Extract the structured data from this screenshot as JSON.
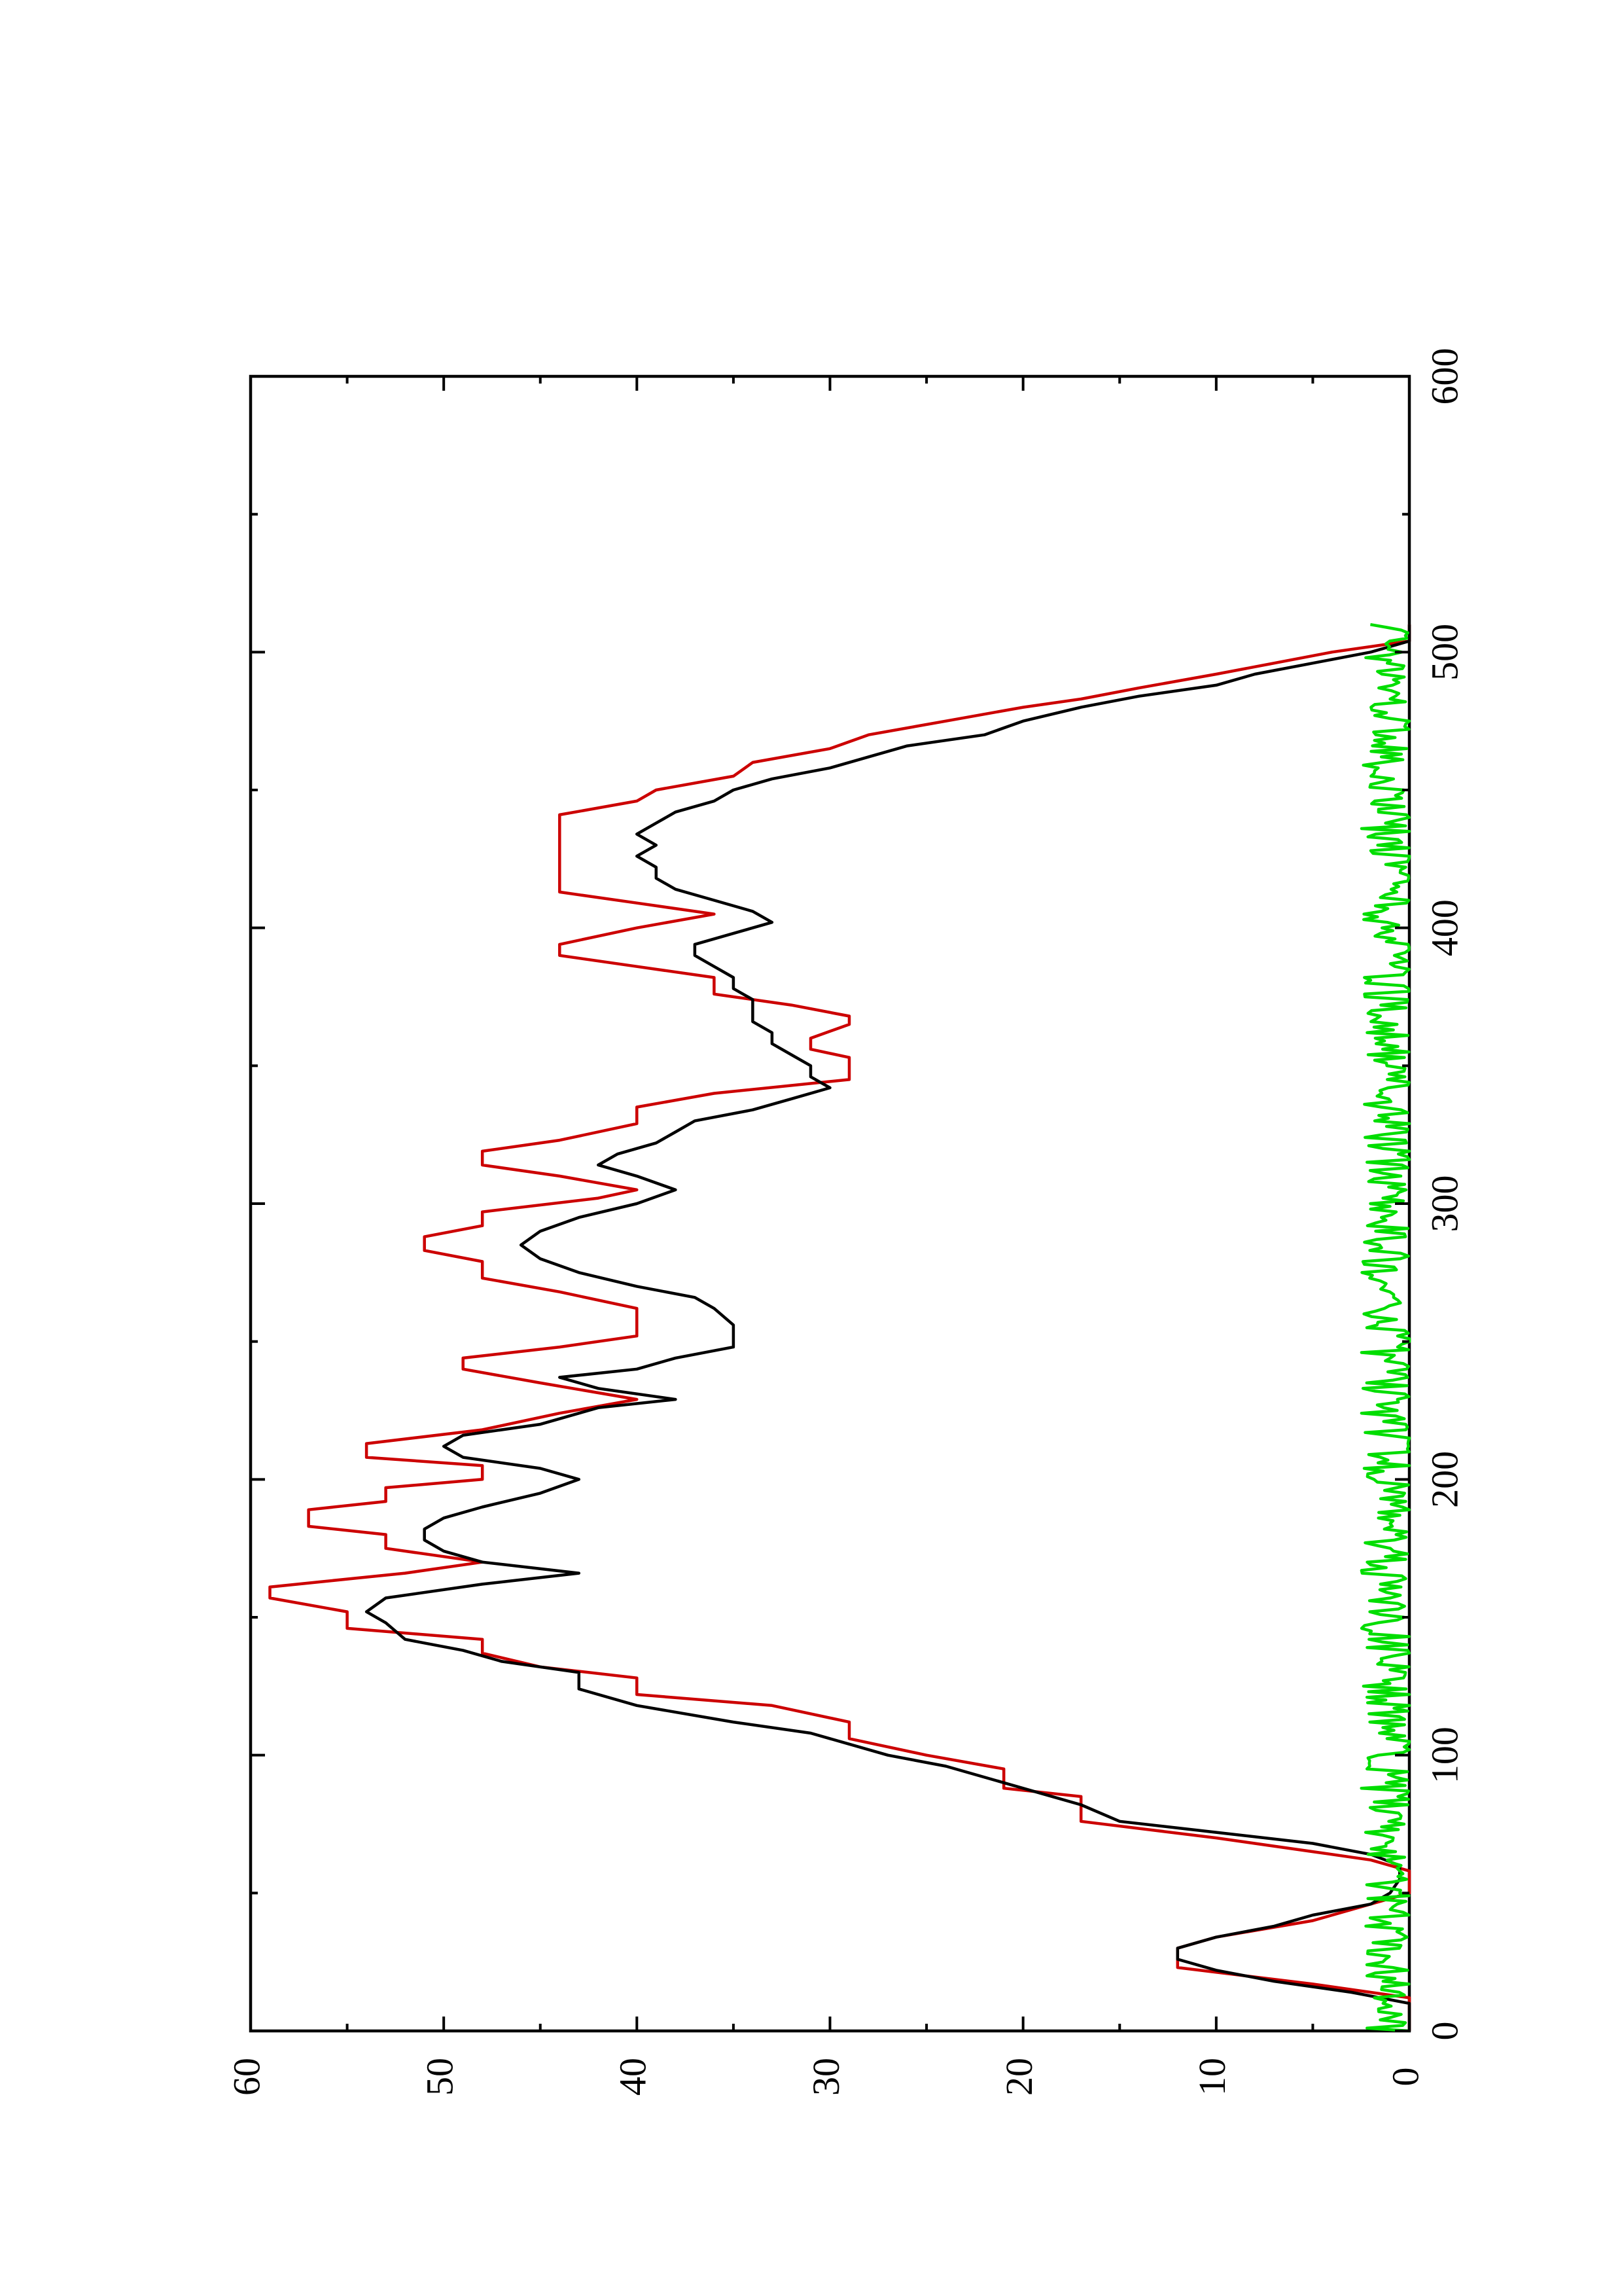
{
  "chart_data": {
    "type": "line",
    "title": "",
    "xlabel": "",
    "ylabel": "",
    "xlim": [
      0,
      600
    ],
    "ylim": [
      0,
      60
    ],
    "x_ticks": [
      0,
      100,
      200,
      300,
      400,
      500,
      600
    ],
    "x_minor_ticks": [
      50,
      150,
      250,
      350,
      450,
      550
    ],
    "y_ticks": [
      0,
      10,
      20,
      30,
      40,
      50,
      60
    ],
    "y_minor_ticks": [
      5,
      15,
      25,
      35,
      45,
      55
    ],
    "grid": false,
    "legend": "none",
    "orientation": "rotated-90-ccw",
    "series": [
      {
        "color": "#cc0000",
        "style": "step",
        "points": [
          [
            0,
            0
          ],
          [
            12,
            0
          ],
          [
            17,
            5
          ],
          [
            23,
            12
          ],
          [
            30,
            12
          ],
          [
            34,
            10
          ],
          [
            40,
            5
          ],
          [
            46,
            2
          ],
          [
            50,
            0
          ],
          [
            58,
            0
          ],
          [
            62,
            2
          ],
          [
            65,
            5
          ],
          [
            70,
            10
          ],
          [
            76,
            17
          ],
          [
            85,
            17
          ],
          [
            88,
            21
          ],
          [
            95,
            21
          ],
          [
            100,
            25
          ],
          [
            106,
            29
          ],
          [
            112,
            29
          ],
          [
            118,
            33
          ],
          [
            122,
            40
          ],
          [
            128,
            40
          ],
          [
            132,
            45
          ],
          [
            137,
            48
          ],
          [
            142,
            48
          ],
          [
            146,
            55
          ],
          [
            152,
            55
          ],
          [
            157,
            59
          ],
          [
            161,
            59
          ],
          [
            166,
            52
          ],
          [
            170,
            48
          ],
          [
            175,
            53
          ],
          [
            180,
            53
          ],
          [
            183,
            57
          ],
          [
            189,
            57
          ],
          [
            192,
            53
          ],
          [
            197,
            53
          ],
          [
            200,
            48
          ],
          [
            205,
            48
          ],
          [
            208,
            54
          ],
          [
            213,
            54
          ],
          [
            218,
            48
          ],
          [
            224,
            44
          ],
          [
            229,
            40
          ],
          [
            235,
            45
          ],
          [
            240,
            49
          ],
          [
            244,
            49
          ],
          [
            248,
            44
          ],
          [
            252,
            40
          ],
          [
            262,
            40
          ],
          [
            268,
            44
          ],
          [
            273,
            48
          ],
          [
            279,
            48
          ],
          [
            283,
            51
          ],
          [
            288,
            51
          ],
          [
            292,
            48
          ],
          [
            297,
            48
          ],
          [
            302,
            42
          ],
          [
            305,
            40
          ],
          [
            310,
            44
          ],
          [
            314,
            48
          ],
          [
            319,
            48
          ],
          [
            323,
            44
          ],
          [
            329,
            40
          ],
          [
            335,
            40
          ],
          [
            340,
            36
          ],
          [
            345,
            29
          ],
          [
            349,
            29
          ],
          [
            353,
            29
          ],
          [
            356,
            31
          ],
          [
            360,
            31
          ],
          [
            365,
            29
          ],
          [
            368,
            29
          ],
          [
            372,
            32
          ],
          [
            376,
            36
          ],
          [
            382,
            36
          ],
          [
            386,
            40
          ],
          [
            390,
            44
          ],
          [
            394,
            44
          ],
          [
            400,
            40
          ],
          [
            405,
            36
          ],
          [
            409,
            40
          ],
          [
            413,
            44
          ],
          [
            427,
            44
          ],
          [
            441,
            44
          ],
          [
            446,
            40
          ],
          [
            450,
            39
          ],
          [
            455,
            35
          ],
          [
            460,
            34
          ],
          [
            465,
            30
          ],
          [
            470,
            28
          ],
          [
            475,
            24
          ],
          [
            480,
            20
          ],
          [
            483,
            17
          ],
          [
            487,
            14
          ],
          [
            492,
            10
          ],
          [
            496,
            7
          ],
          [
            500,
            4
          ],
          [
            504,
            0
          ],
          [
            510,
            0
          ]
        ]
      },
      {
        "color": "#000000",
        "style": "line",
        "points": [
          [
            0,
            0
          ],
          [
            10,
            0
          ],
          [
            14,
            3
          ],
          [
            18,
            7
          ],
          [
            22,
            10
          ],
          [
            26,
            12
          ],
          [
            30,
            12
          ],
          [
            34,
            10
          ],
          [
            38,
            7
          ],
          [
            42,
            5
          ],
          [
            46,
            2
          ],
          [
            50,
            1
          ],
          [
            55,
            0.5
          ],
          [
            60,
            0.5
          ],
          [
            64,
            2
          ],
          [
            68,
            5
          ],
          [
            72,
            10
          ],
          [
            76,
            15
          ],
          [
            82,
            17
          ],
          [
            86,
            19
          ],
          [
            90,
            21
          ],
          [
            96,
            24
          ],
          [
            100,
            27
          ],
          [
            104,
            29
          ],
          [
            108,
            31
          ],
          [
            112,
            35
          ],
          [
            118,
            40
          ],
          [
            124,
            43
          ],
          [
            130,
            43
          ],
          [
            134,
            47
          ],
          [
            138,
            49
          ],
          [
            142,
            52
          ],
          [
            148,
            53
          ],
          [
            152,
            54
          ],
          [
            157,
            53
          ],
          [
            162,
            48
          ],
          [
            166,
            43
          ],
          [
            170,
            48
          ],
          [
            174,
            50
          ],
          [
            178,
            51
          ],
          [
            182,
            51
          ],
          [
            186,
            50
          ],
          [
            190,
            48
          ],
          [
            195,
            45
          ],
          [
            200,
            43
          ],
          [
            204,
            45
          ],
          [
            208,
            49
          ],
          [
            212,
            50
          ],
          [
            216,
            49
          ],
          [
            220,
            45
          ],
          [
            226,
            42
          ],
          [
            229,
            38
          ],
          [
            233,
            42
          ],
          [
            237,
            44
          ],
          [
            240,
            40
          ],
          [
            244,
            38
          ],
          [
            248,
            35
          ],
          [
            256,
            35
          ],
          [
            262,
            36
          ],
          [
            266,
            37
          ],
          [
            270,
            40
          ],
          [
            275,
            43
          ],
          [
            280,
            45
          ],
          [
            285,
            46
          ],
          [
            290,
            45
          ],
          [
            295,
            43
          ],
          [
            300,
            40
          ],
          [
            305,
            38
          ],
          [
            310,
            40
          ],
          [
            314,
            42
          ],
          [
            318,
            41
          ],
          [
            322,
            39
          ],
          [
            326,
            38
          ],
          [
            330,
            37
          ],
          [
            334,
            34
          ],
          [
            338,
            32
          ],
          [
            342,
            30
          ],
          [
            346,
            31
          ],
          [
            350,
            31
          ],
          [
            354,
            32
          ],
          [
            358,
            33
          ],
          [
            362,
            33
          ],
          [
            366,
            34
          ],
          [
            370,
            34
          ],
          [
            374,
            34
          ],
          [
            378,
            35
          ],
          [
            382,
            35
          ],
          [
            386,
            36
          ],
          [
            390,
            37
          ],
          [
            394,
            37
          ],
          [
            398,
            35
          ],
          [
            402,
            33
          ],
          [
            406,
            34
          ],
          [
            410,
            36
          ],
          [
            414,
            38
          ],
          [
            418,
            39
          ],
          [
            422,
            39
          ],
          [
            426,
            40
          ],
          [
            430,
            39
          ],
          [
            434,
            40
          ],
          [
            438,
            39
          ],
          [
            442,
            38
          ],
          [
            446,
            36
          ],
          [
            450,
            35
          ],
          [
            454,
            33
          ],
          [
            458,
            30
          ],
          [
            462,
            28
          ],
          [
            466,
            26
          ],
          [
            470,
            22
          ],
          [
            475,
            20
          ],
          [
            480,
            17
          ],
          [
            484,
            14
          ],
          [
            488,
            10
          ],
          [
            492,
            8
          ],
          [
            496,
            5
          ],
          [
            500,
            2
          ],
          [
            504,
            0
          ],
          [
            510,
            0
          ]
        ]
      },
      {
        "color": "#00dd00",
        "style": "noise",
        "x_range": [
          0,
          510
        ],
        "amplitude": [
          0,
          2.5
        ],
        "samples": 510
      }
    ]
  }
}
